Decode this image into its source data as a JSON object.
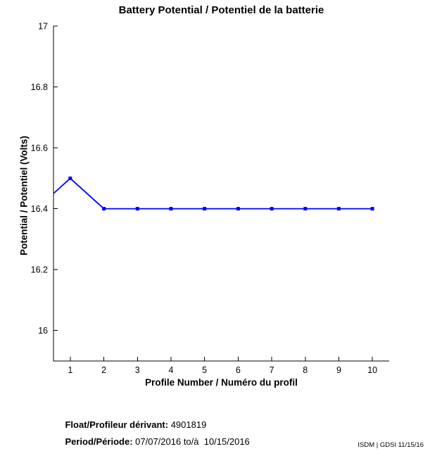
{
  "figure": {
    "watermark": "ISDM | GDSI 11/15/16"
  },
  "chart_data": {
    "type": "line",
    "title": "Battery Potential / Potentiel de la batterie",
    "xlabel": "Profile Number / Numéro du profil",
    "ylabel": "Potential / Potentiel (Volts)",
    "x": [
      1,
      2,
      3,
      4,
      5,
      6,
      7,
      8,
      9,
      10
    ],
    "series": [
      {
        "name": "battery-potential",
        "values": [
          16.5,
          16.4,
          16.4,
          16.4,
          16.4,
          16.4,
          16.4,
          16.4,
          16.4,
          16.4
        ]
      }
    ],
    "line_entry_from_left_edge": {
      "x": 0.5,
      "value": 16.45
    },
    "xlim": [
      0.5,
      10.5
    ],
    "ylim": [
      15.9,
      17
    ],
    "xticks": [
      {
        "value": 1,
        "label": "1"
      },
      {
        "value": 2,
        "label": "2"
      },
      {
        "value": 3,
        "label": "3"
      },
      {
        "value": 4,
        "label": "4"
      },
      {
        "value": 5,
        "label": "5"
      },
      {
        "value": 6,
        "label": "6"
      },
      {
        "value": 7,
        "label": "7"
      },
      {
        "value": 8,
        "label": "8"
      },
      {
        "value": 9,
        "label": "9"
      },
      {
        "value": 10,
        "label": "10"
      }
    ],
    "yticks": [
      {
        "value": 16,
        "label": "16"
      },
      {
        "value": 16.2,
        "label": "16.2"
      },
      {
        "value": 16.4,
        "label": "16.4"
      },
      {
        "value": 16.6,
        "label": "16.6"
      },
      {
        "value": 16.8,
        "label": "16.8"
      },
      {
        "value": 17,
        "label": "17"
      }
    ],
    "grid": false,
    "legend": null,
    "marker": "filled-square",
    "line_color": "#0000ff",
    "axis_color": "#000000"
  },
  "footer": {
    "float_label": "Float/Profileur dérivant:",
    "float_value": " 4901819",
    "period_label": "Period/Période:",
    "period_value": " 07/07/2016 to/à  10/15/2016"
  }
}
